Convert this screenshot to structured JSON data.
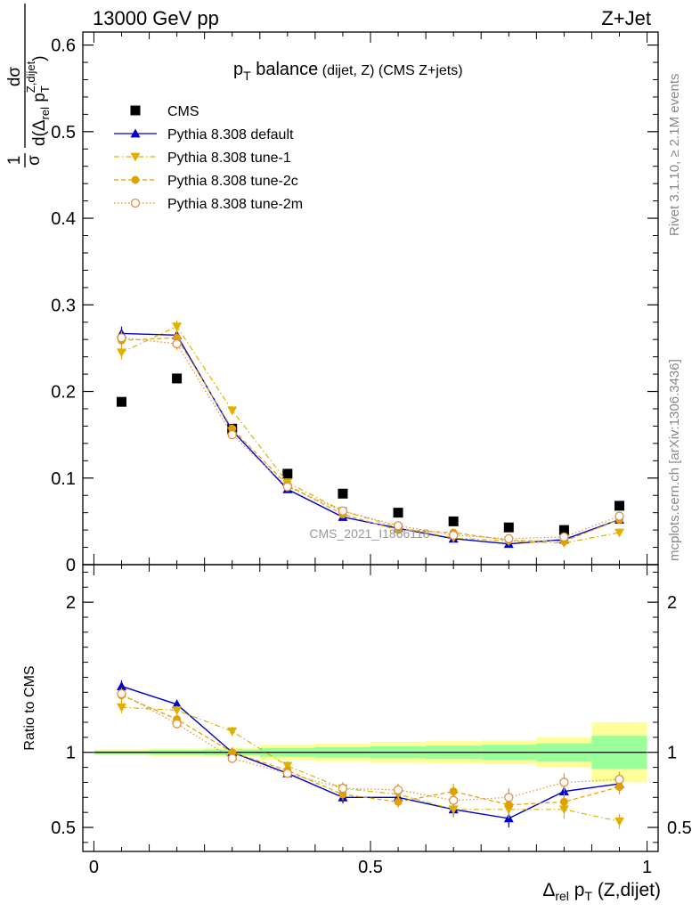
{
  "header": {
    "left": "13000 GeV pp",
    "right": "Z+Jet"
  },
  "side_text": {
    "rivet": "Rivet 3.1.10, ≥ 2.1M events",
    "mcplots": "mcplots.cern.ch [arXiv:1306.3436]"
  },
  "chart_data": [
    {
      "type": "scatter",
      "panel": "main",
      "title": {
        "main": "p",
        "sub": "T",
        "rest": " balance",
        "small": " (dijet, Z)",
        "tail": " (CMS Z+jets)"
      },
      "watermark": "CMS_2021_I1866118",
      "ylabel": {
        "prefix": "1",
        "sigma": "σ",
        "num": "dσ",
        "den_d": "d(Δ",
        "den_sub": "rel",
        "den_p": " p",
        "den_psub": "T",
        "den_sup": "Z,dijet",
        "den_close": ")"
      },
      "ylim": [
        0,
        0.615
      ],
      "xlim": [
        -0.02,
        1.02
      ],
      "yticks": [
        0,
        0.1,
        0.2,
        0.3,
        0.4,
        0.5,
        0.6
      ],
      "ytick_labels": [
        "0",
        "0.1",
        "0.2",
        "0.3",
        "0.4",
        "0.5",
        "0.6"
      ],
      "x": [
        0.05,
        0.15,
        0.25,
        0.35,
        0.45,
        0.55,
        0.65,
        0.75,
        0.85,
        0.95
      ],
      "legend_position": "top-left",
      "series": [
        {
          "name": "CMS",
          "color": "#000000",
          "marker": "square",
          "line": "none",
          "values": [
            0.188,
            0.215,
            0.157,
            0.105,
            0.082,
            0.06,
            0.05,
            0.043,
            0.04,
            0.068
          ],
          "errors": [
            0.002,
            0.002,
            0.002,
            0.002,
            0.002,
            0.002,
            0.002,
            0.002,
            0.002,
            0.002
          ]
        },
        {
          "name": "Pythia 8.308 default",
          "color": "#0000cc",
          "marker": "triangle-up",
          "line": "solid",
          "values": [
            0.267,
            0.265,
            0.155,
            0.087,
            0.055,
            0.042,
            0.03,
            0.024,
            0.029,
            0.052
          ],
          "errors": [
            0.008,
            0.007,
            0.005,
            0.003,
            0.003,
            0.002,
            0.002,
            0.002,
            0.002,
            0.003
          ]
        },
        {
          "name": "Pythia 8.308 tune-1",
          "color": "#e0b000",
          "marker": "triangle-down",
          "line": "dashdot",
          "values": [
            0.245,
            0.275,
            0.178,
            0.095,
            0.062,
            0.043,
            0.031,
            0.027,
            0.025,
            0.037
          ],
          "errors": [
            0.008,
            0.007,
            0.005,
            0.003,
            0.003,
            0.002,
            0.002,
            0.002,
            0.002,
            0.003
          ]
        },
        {
          "name": "Pythia 8.308 tune-2c",
          "color": "#e0a000",
          "marker": "circle",
          "line": "dashed",
          "values": [
            0.259,
            0.262,
            0.157,
            0.092,
            0.058,
            0.04,
            0.037,
            0.028,
            0.027,
            0.052
          ],
          "errors": [
            0.008,
            0.007,
            0.005,
            0.003,
            0.003,
            0.002,
            0.002,
            0.002,
            0.002,
            0.003
          ]
        },
        {
          "name": "Pythia 8.308 tune-2m",
          "color": "#e09040",
          "marker": "circle-open",
          "line": "dotted",
          "values": [
            0.262,
            0.255,
            0.15,
            0.09,
            0.062,
            0.045,
            0.034,
            0.03,
            0.032,
            0.056
          ],
          "errors": [
            0.008,
            0.007,
            0.005,
            0.003,
            0.003,
            0.002,
            0.002,
            0.002,
            0.002,
            0.003
          ]
        }
      ]
    },
    {
      "type": "scatter",
      "panel": "ratio",
      "ylabel": "Ratio to CMS",
      "xlabel": {
        "delta": "Δ",
        "sub": "rel",
        "p": " p",
        "psub": "T",
        "rest": " (Z,dijet)"
      },
      "ylim": [
        0.34,
        2.25
      ],
      "xlim": [
        -0.02,
        1.02
      ],
      "yticks": [
        0.5,
        1,
        2
      ],
      "ytick_labels": [
        "0.5",
        "1",
        "2"
      ],
      "xticks": [
        0,
        0.5,
        1
      ],
      "xtick_labels": [
        "0",
        "0.5",
        "1"
      ],
      "x": [
        0.05,
        0.15,
        0.25,
        0.35,
        0.45,
        0.55,
        0.65,
        0.75,
        0.85,
        0.95
      ],
      "bins": [
        [
          0.0,
          0.1
        ],
        [
          0.1,
          0.2
        ],
        [
          0.2,
          0.3
        ],
        [
          0.3,
          0.4
        ],
        [
          0.4,
          0.5
        ],
        [
          0.5,
          0.6
        ],
        [
          0.6,
          0.7
        ],
        [
          0.7,
          0.8
        ],
        [
          0.8,
          0.9
        ],
        [
          0.9,
          1.0
        ]
      ],
      "band_inner": [
        0.012,
        0.015,
        0.02,
        0.03,
        0.035,
        0.04,
        0.045,
        0.05,
        0.06,
        0.11
      ],
      "band_outer": [
        0.018,
        0.025,
        0.03,
        0.05,
        0.06,
        0.07,
        0.075,
        0.08,
        0.1,
        0.2
      ],
      "band_inner_color": "#99ff99",
      "band_outer_color": "#ffff99",
      "series": [
        {
          "name": "Pythia 8.308 default",
          "color": "#0000cc",
          "marker": "triangle-up",
          "line": "solid",
          "values": [
            1.44,
            1.32,
            1.0,
            0.86,
            0.7,
            0.7,
            0.62,
            0.56,
            0.74,
            0.79
          ],
          "errors": [
            0.04,
            0.03,
            0.03,
            0.03,
            0.04,
            0.04,
            0.05,
            0.06,
            0.06,
            0.05
          ]
        },
        {
          "name": "Pythia 8.308 tune-1",
          "color": "#e0b000",
          "marker": "triangle-down",
          "line": "dashdot",
          "values": [
            1.3,
            1.28,
            1.14,
            0.91,
            0.76,
            0.72,
            0.62,
            0.62,
            0.62,
            0.54
          ],
          "errors": [
            0.04,
            0.03,
            0.03,
            0.03,
            0.04,
            0.04,
            0.05,
            0.06,
            0.06,
            0.05
          ]
        },
        {
          "name": "Pythia 8.308 tune-2c",
          "color": "#e0a000",
          "marker": "circle",
          "line": "dashed",
          "values": [
            1.38,
            1.22,
            1.0,
            0.88,
            0.72,
            0.67,
            0.74,
            0.65,
            0.67,
            0.77
          ],
          "errors": [
            0.04,
            0.03,
            0.03,
            0.03,
            0.04,
            0.04,
            0.05,
            0.06,
            0.06,
            0.05
          ]
        },
        {
          "name": "Pythia 8.308 tune-2m",
          "color": "#e09040",
          "marker": "circle-open",
          "line": "dotted",
          "values": [
            1.39,
            1.19,
            0.96,
            0.86,
            0.76,
            0.75,
            0.68,
            0.7,
            0.8,
            0.82
          ],
          "errors": [
            0.04,
            0.03,
            0.03,
            0.03,
            0.04,
            0.04,
            0.05,
            0.06,
            0.06,
            0.05
          ]
        }
      ]
    }
  ]
}
